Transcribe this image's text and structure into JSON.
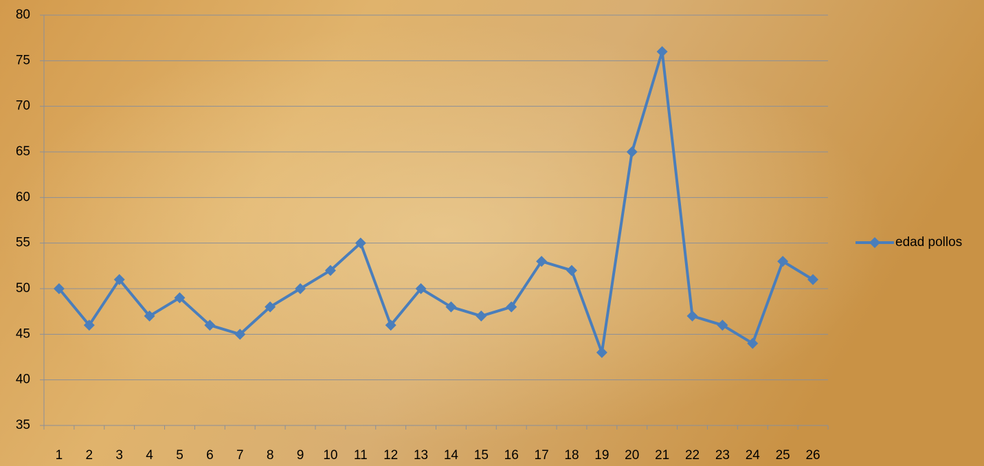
{
  "chart_data": {
    "type": "line",
    "categories": [
      "1",
      "2",
      "3",
      "4",
      "5",
      "6",
      "7",
      "8",
      "9",
      "10",
      "11",
      "12",
      "13",
      "14",
      "15",
      "16",
      "17",
      "18",
      "19",
      "20",
      "21",
      "22",
      "23",
      "24",
      "25",
      "26"
    ],
    "series": [
      {
        "name": "edad pollos",
        "color": "#4a7ebb",
        "values": [
          50,
          46,
          51,
          47,
          49,
          46,
          45,
          48,
          50,
          52,
          55,
          46,
          50,
          48,
          47,
          48,
          53,
          52,
          43,
          65,
          76,
          47,
          46,
          44,
          53,
          51
        ]
      }
    ],
    "ylim": [
      35,
      80
    ],
    "yticks": [
      35,
      40,
      45,
      50,
      55,
      60,
      65,
      70,
      75,
      80
    ],
    "grid": true,
    "legend": "right"
  }
}
